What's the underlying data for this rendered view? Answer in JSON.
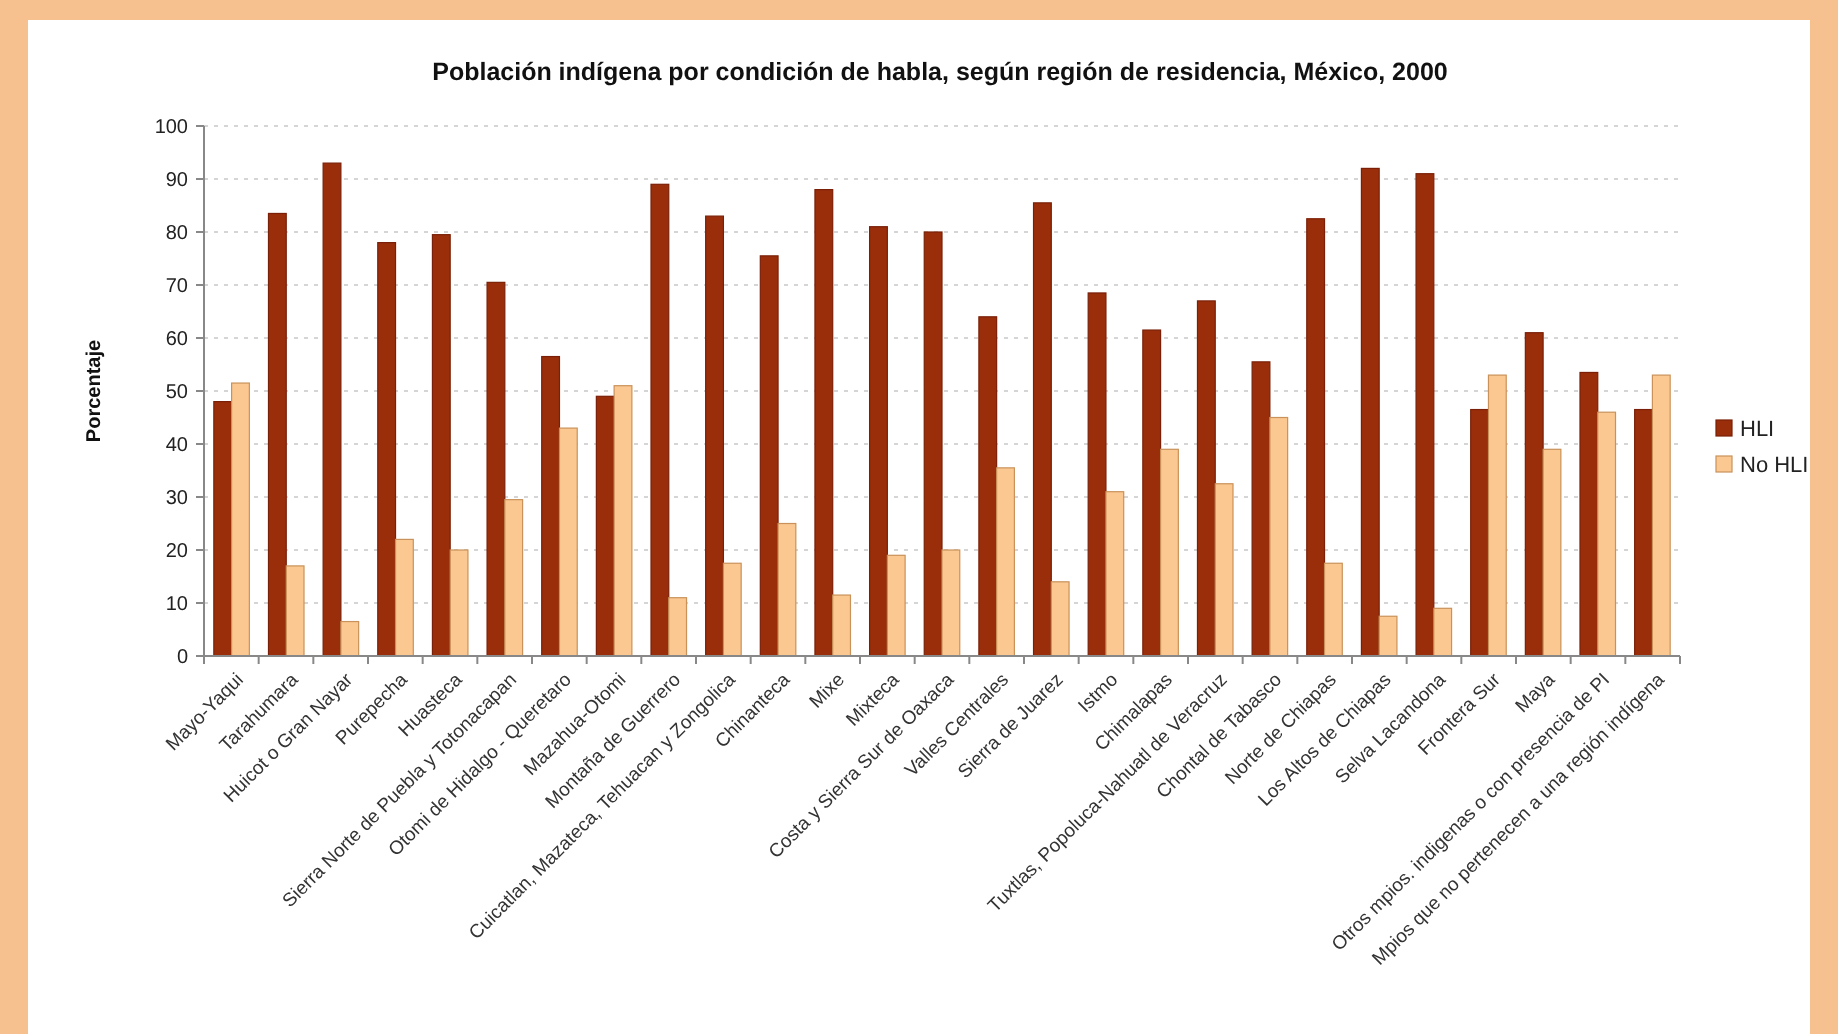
{
  "chart_data": {
    "type": "bar",
    "title": "Población indígena por condición de habla, según región de residencia, México, 2000",
    "ylabel": "Porcentaje",
    "categories": [
      "Mayo-Yaqui",
      "Tarahumara",
      "Huicot o Gran Nayar",
      "Purepecha",
      "Huasteca",
      "Sierra Norte de Puebla y Totonacapan",
      "Otomi de Hidalgo - Queretaro",
      "Mazahua-Otomi",
      "Montaña de Guerrero",
      "Cuicatlan, Mazateca, Tehuacan y Zongolica",
      "Chinanteca",
      "Mixe",
      "Mixteca",
      "Costa y Sierra Sur de Oaxaca",
      "Valles Centrales",
      "Sierra de Juarez",
      "Istmo",
      "Chimalapas",
      "Tuxtlas, Popoluca-Nahuatl de Veracruz",
      "Chontal de Tabasco",
      "Norte de Chiapas",
      "Los Altos de Chiapas",
      "Selva Lacandona",
      "Frontera Sur",
      "Maya",
      "Otros mpios. indigenas o con presencia de PI",
      "Mpios que no pertenecen a una región indígena"
    ],
    "series": [
      {
        "name": "HLI",
        "color": "#9a2e0a",
        "values": [
          48,
          83.5,
          93,
          78,
          79.5,
          70.5,
          56.5,
          49,
          89,
          83,
          75.5,
          88,
          81,
          80,
          64,
          85.5,
          68.5,
          61.5,
          67,
          55.5,
          82.5,
          92,
          91,
          46.5,
          61,
          53.5,
          46.5
        ]
      },
      {
        "name": "No HLI",
        "color": "#fbc891",
        "values": [
          51.5,
          17,
          6.5,
          22,
          20,
          29.5,
          43,
          51,
          11,
          17.5,
          25,
          11.5,
          19,
          20,
          35.5,
          14,
          31,
          39,
          32.5,
          45,
          17.5,
          7.5,
          9,
          53,
          39,
          46,
          53
        ]
      }
    ],
    "ylim": [
      0,
      100
    ],
    "yticks": [
      0,
      10,
      20,
      30,
      40,
      50,
      60,
      70,
      80,
      90,
      100
    ],
    "grid": "y",
    "legend": "right"
  }
}
